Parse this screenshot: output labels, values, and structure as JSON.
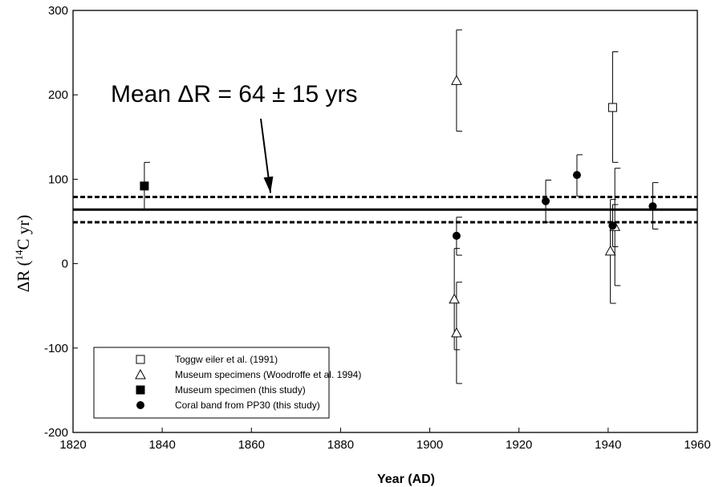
{
  "chart_data": {
    "type": "scatter",
    "title": "",
    "xlabel": "Year (AD)",
    "ylabel": {
      "main": "ΔR (",
      "sup": "14",
      "tail": "C yr)"
    },
    "xlim": [
      1820,
      1960
    ],
    "ylim": [
      -200,
      300
    ],
    "x_ticks": [
      1820,
      1840,
      1860,
      1880,
      1900,
      1920,
      1940,
      1960
    ],
    "y_ticks": [
      -200,
      -100,
      0,
      100,
      200,
      300
    ],
    "grid": false,
    "legend_position": "bottom-left",
    "annotation": {
      "text": "Mean ΔR = 64 ± 15 yrs",
      "arrow_to": [
        1865,
        80
      ]
    },
    "reference_lines": [
      {
        "name": "mean",
        "y": 64,
        "style": "solid"
      },
      {
        "name": "upper",
        "y": 79,
        "style": "dashed"
      },
      {
        "name": "lower",
        "y": 49,
        "style": "dashed"
      }
    ],
    "series": [
      {
        "name": "Toggw eiler et al. (1991)",
        "marker": "open-square",
        "points": [
          {
            "x": 1941,
            "y": 185,
            "err_low": 120,
            "err_high": 251
          }
        ]
      },
      {
        "name": "Museum specimens (Woodroffe et al. 1994)",
        "marker": "open-triangle",
        "points": [
          {
            "x": 1906,
            "y": 217,
            "err_low": 157,
            "err_high": 277
          },
          {
            "x": 1905.5,
            "y": -42,
            "err_low": -102,
            "err_high": 18
          },
          {
            "x": 1906,
            "y": -82,
            "err_low": -142,
            "err_high": -22
          },
          {
            "x": 1940.5,
            "y": 15,
            "err_low": -47,
            "err_high": 76
          },
          {
            "x": 1941.5,
            "y": 44,
            "err_low": -26,
            "err_high": 113
          }
        ]
      },
      {
        "name": "Museum specimen (this study)",
        "marker": "filled-square",
        "points": [
          {
            "x": 1836,
            "y": 92,
            "err_low": 64,
            "err_high": 120
          }
        ]
      },
      {
        "name": "Coral band from PP30 (this study)",
        "marker": "filled-circle",
        "points": [
          {
            "x": 1906,
            "y": 33,
            "err_low": 10,
            "err_high": 55
          },
          {
            "x": 1926,
            "y": 74,
            "err_low": 49,
            "err_high": 99
          },
          {
            "x": 1933,
            "y": 105,
            "err_low": 80,
            "err_high": 129
          },
          {
            "x": 1941,
            "y": 45,
            "err_low": 20,
            "err_high": 70
          },
          {
            "x": 1950,
            "y": 68,
            "err_low": 41,
            "err_high": 96
          }
        ]
      }
    ]
  }
}
